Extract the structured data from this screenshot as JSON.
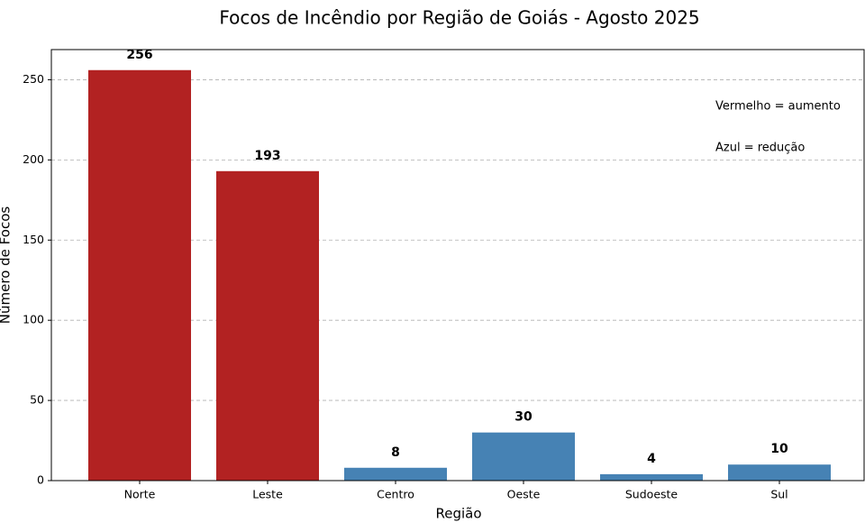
{
  "chart_data": {
    "type": "bar",
    "title": "Focos de Incêndio por Região de Goiás - Agosto 2025",
    "x_label": "Região",
    "y_label": "Número de Focos",
    "categories": [
      "Norte",
      "Leste",
      "Centro",
      "Oeste",
      "Sudoeste",
      "Sul"
    ],
    "values": [
      256,
      193,
      8,
      30,
      4,
      10
    ],
    "colors": [
      "#b22222",
      "#b22222",
      "#4682b4",
      "#4682b4",
      "#4682b4",
      "#4682b4"
    ],
    "ylim": [
      0,
      268.8
    ],
    "yticks": [
      0,
      50,
      100,
      150,
      200,
      250
    ],
    "grid": true,
    "annotations": [
      {
        "text": "Vermelho = aumento",
        "color": "#b22222"
      },
      {
        "text": "Azul = redução",
        "color": "#4682b4"
      }
    ]
  }
}
